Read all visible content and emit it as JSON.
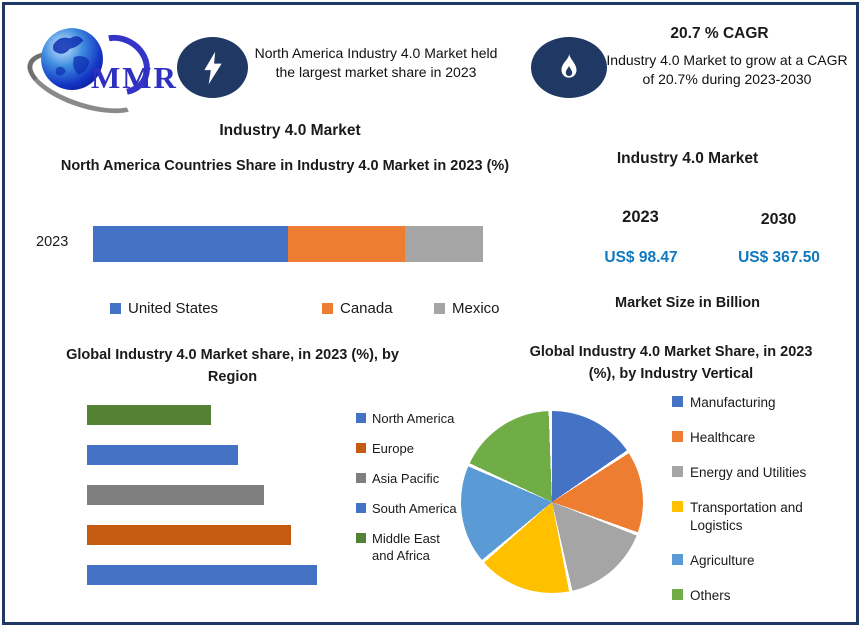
{
  "page": {
    "background": "#ffffff",
    "border_color": "#1f3864",
    "badge_color": "#1f3864"
  },
  "header": {
    "logo_text": "MMR",
    "left_badge_icon": "lightning-bolt-icon",
    "left_note": "North America Industry 4.0 Market held the largest market share in 2023",
    "right_title": "20.7 % CAGR",
    "right_badge_icon": "flame-icon",
    "right_note": "Industry 4.0 Market to grow at a CAGR of 20.7% during 2023-2030"
  },
  "left_panel": {
    "title": "Industry 4.0 Market"
  },
  "market_size": {
    "title": "Industry 4.0 Market",
    "items": [
      {
        "year": "2023",
        "value": "US$ 98.47"
      },
      {
        "year": "2030",
        "value": "US$ 367.50"
      }
    ],
    "caption": "Market Size in Billion",
    "value_color": "#0f78c0"
  },
  "chart_data": [
    {
      "id": "na-countries-share",
      "type": "bar",
      "variant": "stacked-horizontal",
      "title": "North America Countries Share in Industry 4.0  Market in 2023 (%)",
      "categories": [
        "2023"
      ],
      "series": [
        {
          "name": "United States",
          "color": "#4472C4",
          "values": [
            50
          ]
        },
        {
          "name": "Canada",
          "color": "#ED7D31",
          "values": [
            30
          ]
        },
        {
          "name": "Mexico",
          "color": "#A5A5A5",
          "values": [
            20
          ]
        }
      ],
      "legend_position": "bottom",
      "xlim": [
        0,
        100
      ],
      "grid": false
    },
    {
      "id": "global-share-by-region",
      "type": "bar",
      "variant": "horizontal",
      "title": "Global Industry 4.0  Market share, in 2023 (%), by Region",
      "categories": [
        "Middle East and Africa",
        "South America",
        "Asia Pacific",
        "Europe",
        "North America"
      ],
      "values": [
        14,
        17,
        20,
        23,
        26
      ],
      "colors": [
        "#548235",
        "#4472C4",
        "#7F7F7F",
        "#C55A11",
        "#4472C4"
      ],
      "legend": [
        {
          "label": "North America",
          "color": "#4472C4"
        },
        {
          "label": "Europe",
          "color": "#C55A11"
        },
        {
          "label": "Asia Pacific",
          "color": "#7F7F7F"
        },
        {
          "label": "South America",
          "color": "#4472C4"
        },
        {
          "label": "Middle East and Africa",
          "color": "#548235"
        }
      ],
      "legend_position": "right",
      "xlim": [
        0,
        28
      ],
      "grid": false
    },
    {
      "id": "global-share-by-industry-vertical",
      "type": "pie",
      "title": "Global Industry 4.0 Market Share, in 2023 (%), by  Industry Vertical",
      "labels": [
        "Manufacturing",
        "Healthcare",
        "Energy and Utilities",
        "Transportation and Logistics",
        "Agriculture",
        "Others"
      ],
      "values": [
        16,
        15,
        16,
        17,
        18,
        18
      ],
      "colors": [
        "#4472C4",
        "#ED7D31",
        "#A5A5A5",
        "#FFC000",
        "#5B9BD5",
        "#70AD47"
      ],
      "start_angle_deg": 0,
      "legend_position": "right"
    }
  ]
}
